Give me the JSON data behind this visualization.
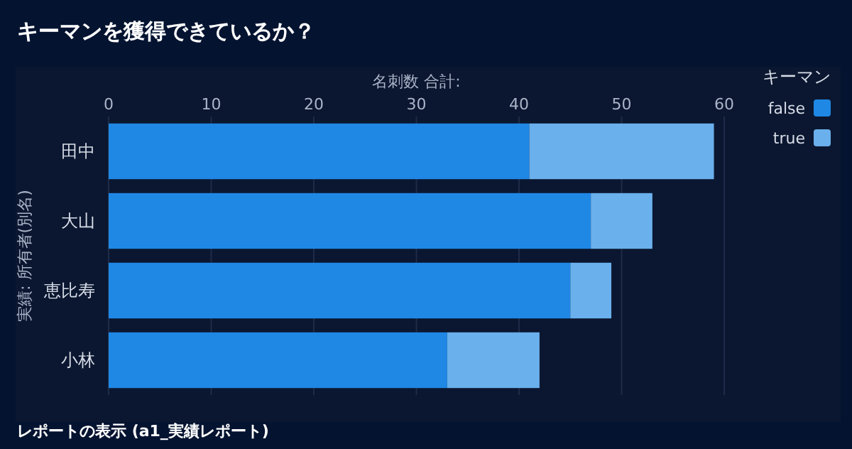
{
  "chart_data": {
    "type": "bar",
    "orientation": "horizontal",
    "stacked": true,
    "title": "キーマンを獲得できているか？",
    "xlabel": "名刺数 合計:",
    "ylabel": "実績: 所有者(別名)",
    "legend_title": "キーマン",
    "annotations": [
      "レポートの表示 (a1_実績レポート)"
    ],
    "categories": [
      "田中",
      "大山",
      "恵比寿",
      "小林"
    ],
    "series": [
      {
        "name": "false",
        "color": "#1f88e5",
        "values": [
          41,
          47,
          45,
          33
        ]
      },
      {
        "name": "true",
        "color": "#6ab0ec",
        "values": [
          18,
          6,
          4,
          9
        ]
      }
    ],
    "xlim": [
      0,
      60
    ],
    "xticks": [
      0,
      10,
      20,
      30,
      40,
      50,
      60
    ],
    "grid": "x",
    "legend": "top right"
  }
}
